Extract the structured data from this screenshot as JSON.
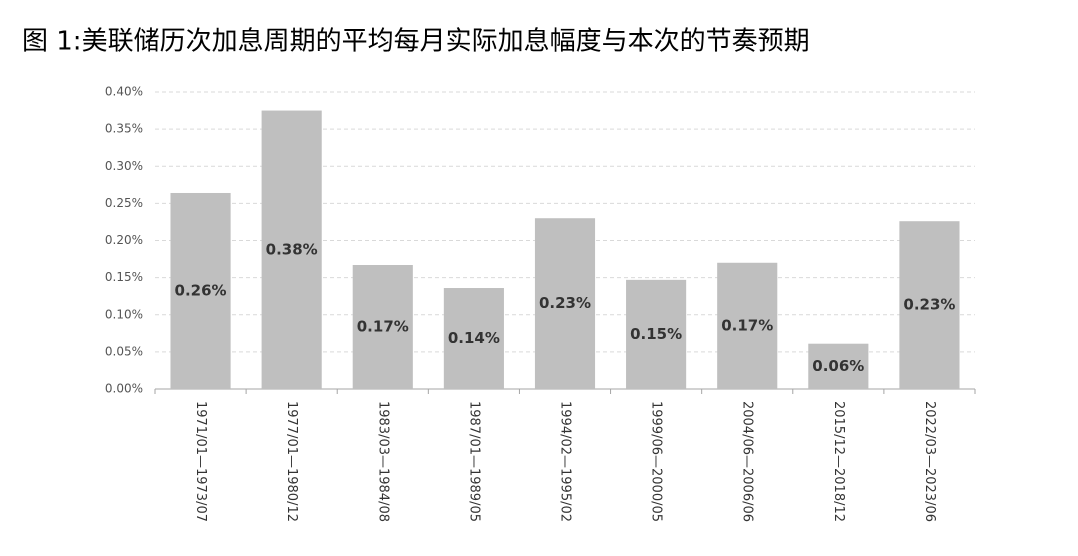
{
  "chart_data": {
    "type": "bar",
    "title": "图 1:美联储历次加息周期的平均每月实际加息幅度与本次的节奏预期",
    "categories": [
      "1971/01—1973/07",
      "1977/01—1980/12",
      "1983/03—1984/08",
      "1987/01—1989/05",
      "1994/02—1995/02",
      "1999/06—2000/05",
      "2004/06—2006/06",
      "2015/12—2018/12",
      "2022/03—2023/06"
    ],
    "values": [
      0.264,
      0.375,
      0.167,
      0.136,
      0.23,
      0.147,
      0.17,
      0.061,
      0.226
    ],
    "value_labels": [
      "0.26%",
      "0.38%",
      "0.17%",
      "0.14%",
      "0.23%",
      "0.15%",
      "0.17%",
      "0.06%",
      "0.23%"
    ],
    "color": "#bfbfbf",
    "ylim": [
      0,
      0.4
    ],
    "yticks": [
      {
        "value": 0,
        "label": "0.00%"
      },
      {
        "value": 0.05,
        "label": "0.05%"
      },
      {
        "value": 0.1,
        "label": "0.10%"
      },
      {
        "value": 0.15,
        "label": "0.15%"
      },
      {
        "value": 0.2,
        "label": "0.20%"
      },
      {
        "value": 0.25,
        "label": "0.25%"
      },
      {
        "value": 0.3,
        "label": "0.30%"
      },
      {
        "value": 0.35,
        "label": "0.35%"
      },
      {
        "value": 0.4,
        "label": "0.40%"
      }
    ],
    "grid": true
  }
}
